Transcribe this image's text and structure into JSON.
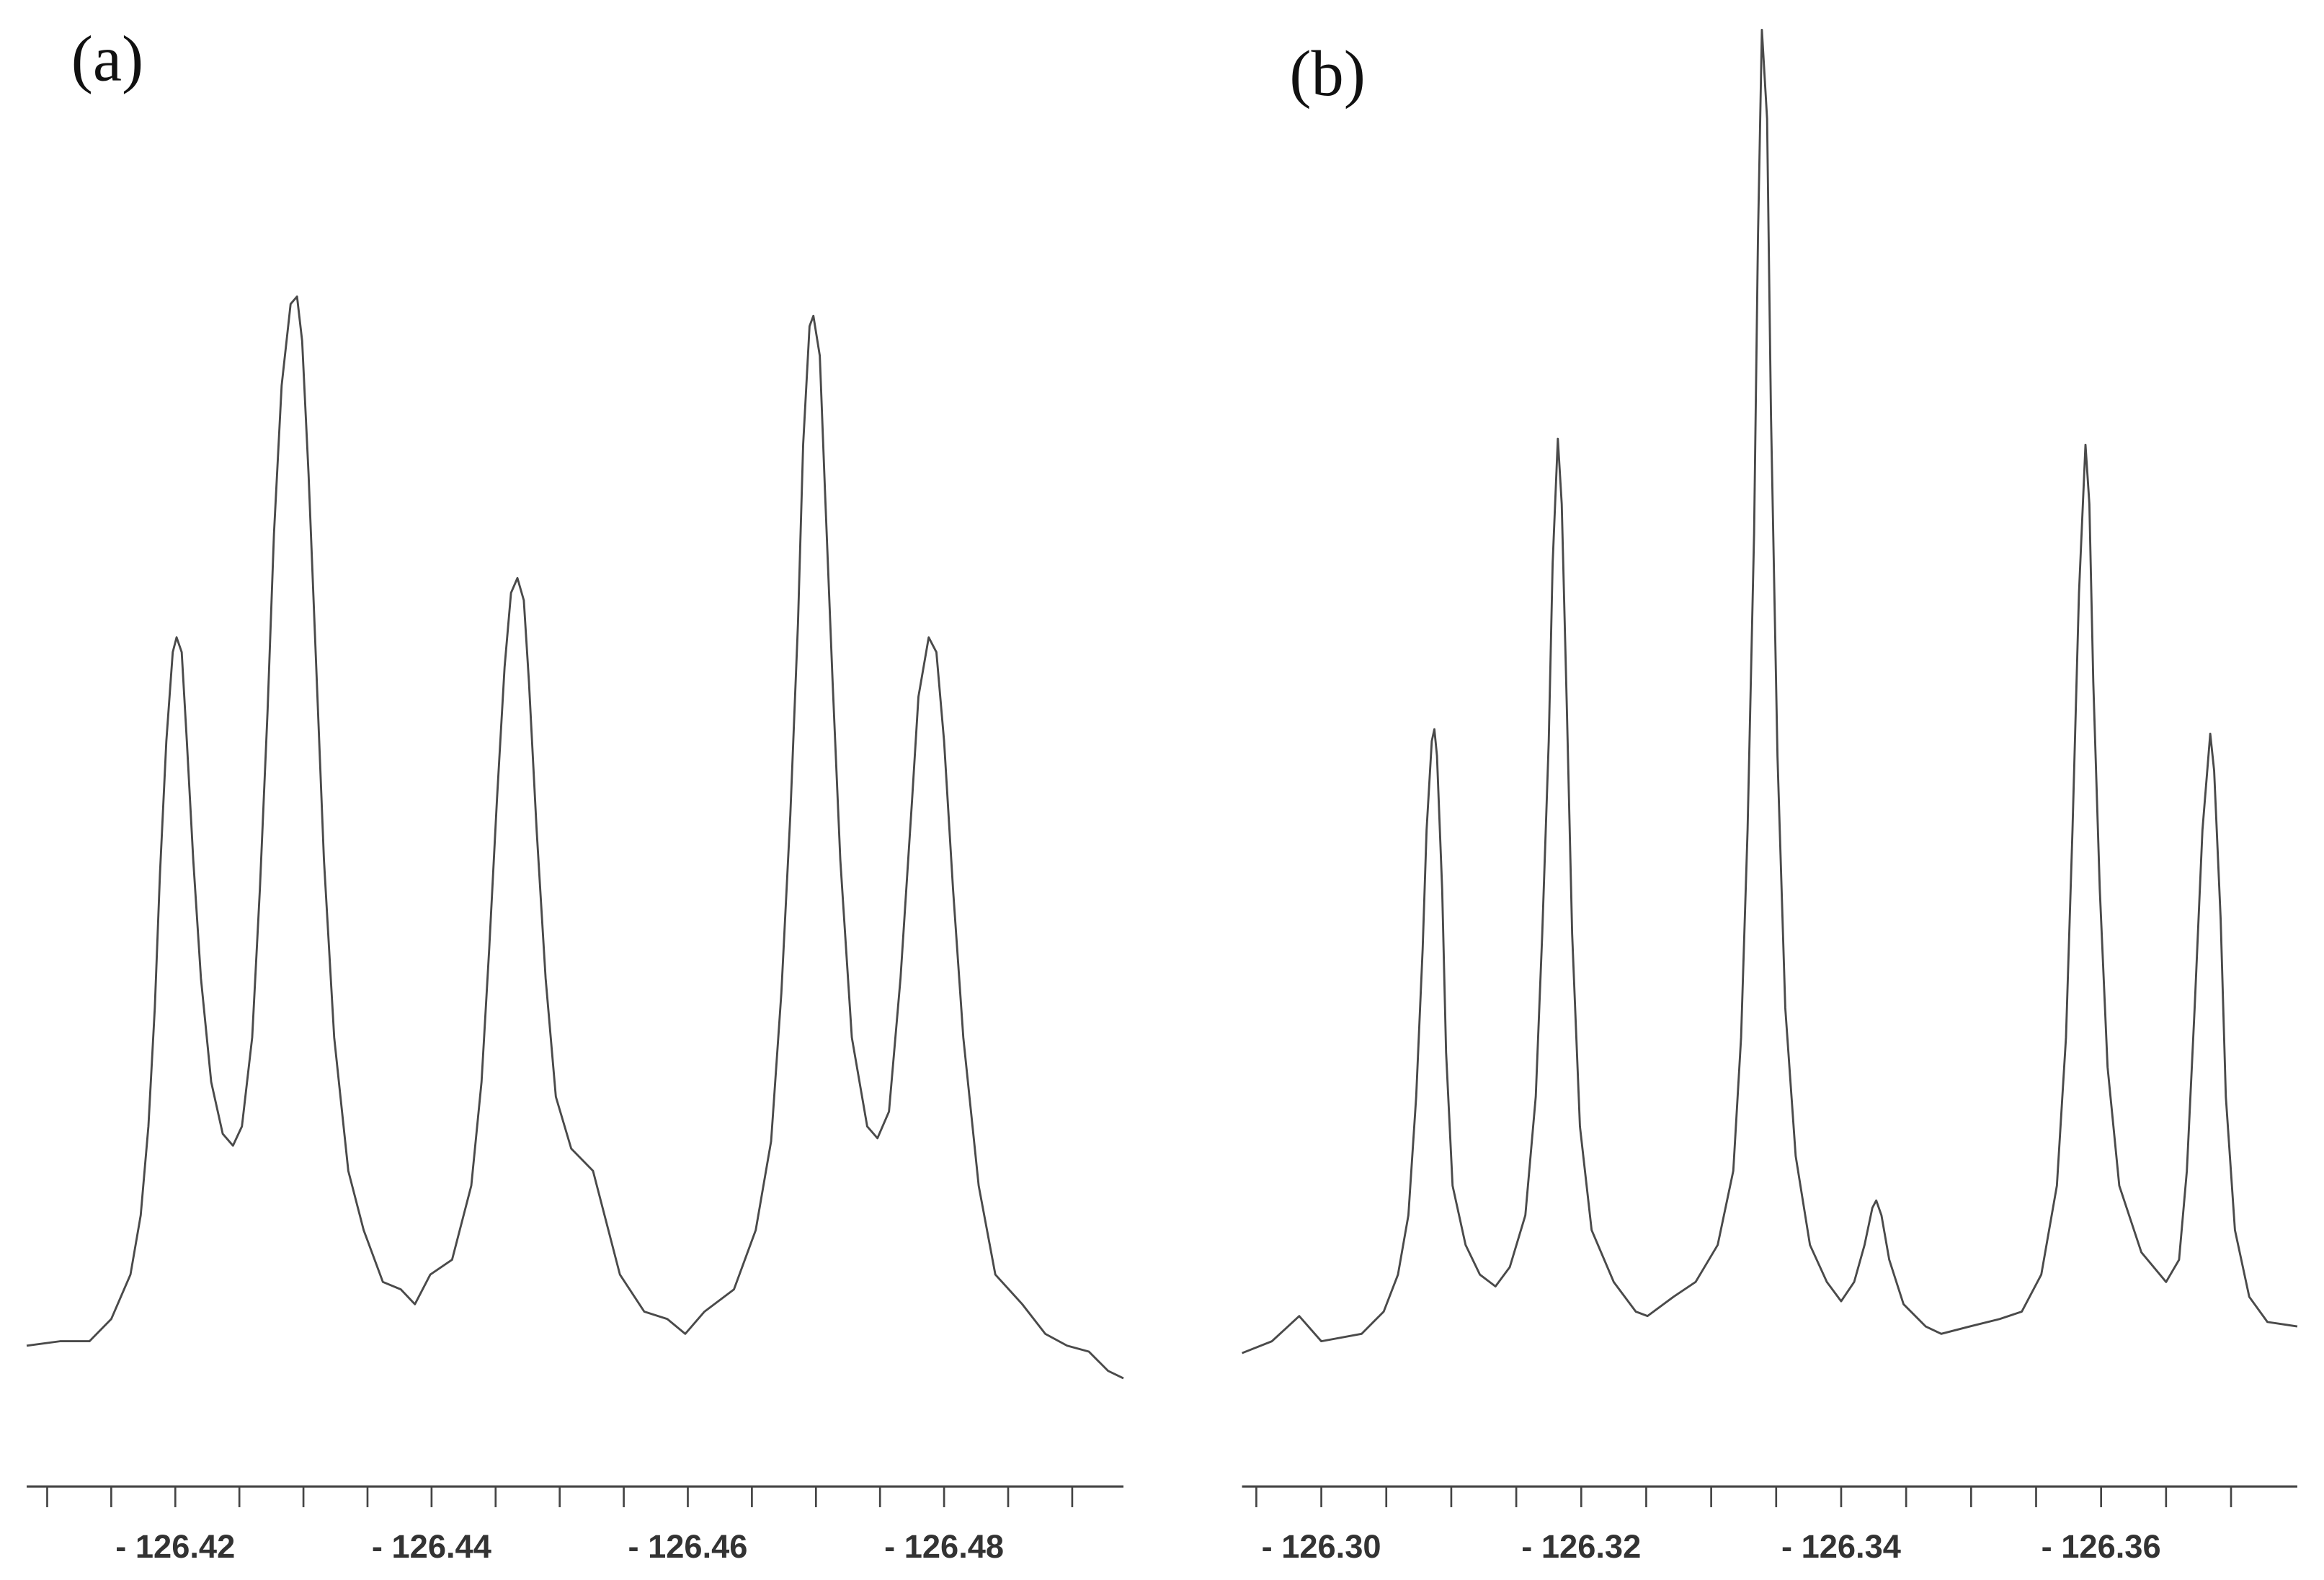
{
  "chart_data": [
    {
      "type": "line",
      "title": "(a)",
      "color": "#4a4a4a",
      "xlim": [
        -126.4084,
        -126.494
      ],
      "ylim": [
        0,
        95
      ],
      "xticks": [
        {
          "value": -126.42,
          "label": "- 126.42"
        },
        {
          "value": -126.44,
          "label": "- 126.44"
        },
        {
          "value": -126.46,
          "label": "- 126.46"
        },
        {
          "value": -126.48,
          "label": "- 126.48"
        }
      ],
      "xminorticks": [
        -126.41,
        -126.415,
        -126.425,
        -126.43,
        -126.435,
        -126.445,
        -126.45,
        -126.455,
        -126.465,
        -126.47,
        -126.475,
        -126.485,
        -126.49
      ],
      "x": [
        -126.4084,
        -126.411,
        -126.4133,
        -126.415,
        -126.4165,
        -126.4173,
        -126.4179,
        -126.4184,
        -126.4188,
        -126.4193,
        -126.4198,
        -126.4201,
        -126.4205,
        -126.4209,
        -126.4214,
        -126.422,
        -126.4228,
        -126.4237,
        -126.4245,
        -126.4252,
        -126.426,
        -126.4266,
        -126.4272,
        -126.4277,
        -126.4283,
        -126.429,
        -126.4295,
        -126.4299,
        -126.4304,
        -126.431,
        -126.4316,
        -126.4324,
        -126.4335,
        -126.4347,
        -126.4362,
        -126.4376,
        -126.4387,
        -126.4399,
        -126.4416,
        -126.4431,
        -126.4439,
        -126.4445,
        -126.4451,
        -126.4457,
        -126.4462,
        -126.4467,
        -126.4472,
        -126.4476,
        -126.4482,
        -126.4489,
        -126.4497,
        -126.4509,
        -126.4526,
        -126.4535,
        -126.4547,
        -126.4566,
        -126.4584,
        -126.4598,
        -126.4613,
        -126.4636,
        -126.4653,
        -126.4665,
        -126.4673,
        -126.468,
        -126.4686,
        -126.469,
        -126.4695,
        -126.4698,
        -126.4703,
        -126.4707,
        -126.4713,
        -126.4719,
        -126.4728,
        -126.474,
        -126.4748,
        -126.4757,
        -126.4766,
        -126.4775,
        -126.478,
        -126.4788,
        -126.4794,
        -126.48,
        -126.4807,
        -126.4815,
        -126.4827,
        -126.484,
        -126.4861,
        -126.4879,
        -126.4896,
        -126.4913,
        -126.4928,
        -126.494
      ],
      "values": [
        5.2,
        5.5,
        5.5,
        7.0,
        10.0,
        14.0,
        20.0,
        28.0,
        37.0,
        46.0,
        52.0,
        53.0,
        52.0,
        46.0,
        38.0,
        30.0,
        23.0,
        19.5,
        18.7,
        20.0,
        26.0,
        36.0,
        48.0,
        60.0,
        70.0,
        75.5,
        76.0,
        73.0,
        64.0,
        51.0,
        38.0,
        26.0,
        17.0,
        13.0,
        9.5,
        9.0,
        8.0,
        10.0,
        11.0,
        16.0,
        23.0,
        32.0,
        42.0,
        51.0,
        56.0,
        57.0,
        55.5,
        50.0,
        40.0,
        30.0,
        22.0,
        18.5,
        17.0,
        14.0,
        10.0,
        7.5,
        7.0,
        6.0,
        7.5,
        9.0,
        13.0,
        19.0,
        29.0,
        41.0,
        54.0,
        66.0,
        74.0,
        74.7,
        72.0,
        63.0,
        50.0,
        38.0,
        26.0,
        20.0,
        19.2,
        21.0,
        30.0,
        42.0,
        49.0,
        53.0,
        52.0,
        46.0,
        36.0,
        26.0,
        16.0,
        10.0,
        8.0,
        6.0,
        5.2,
        4.8,
        3.5,
        3.0
      ]
    },
    {
      "type": "line",
      "title": "(b)",
      "color": "#4a4a4a",
      "xlim": [
        -126.2939,
        -126.3751
      ],
      "ylim": [
        0,
        95
      ],
      "xticks": [
        {
          "value": -126.3,
          "label": "- 126.30"
        },
        {
          "value": -126.32,
          "label": "- 126.32"
        },
        {
          "value": -126.34,
          "label": "- 126.34"
        },
        {
          "value": -126.36,
          "label": "- 126.36"
        }
      ],
      "xminorticks": [
        -126.295,
        -126.305,
        -126.31,
        -126.315,
        -126.325,
        -126.33,
        -126.335,
        -126.345,
        -126.35,
        -126.355,
        -126.365,
        -126.37
      ],
      "x": [
        -126.2939,
        -126.2962,
        -126.2983,
        -126.3,
        -126.3031,
        -126.3048,
        -126.3059,
        -126.3067,
        -126.3073,
        -126.3078,
        -126.3081,
        -126.3085,
        -126.3087,
        -126.3089,
        -126.3093,
        -126.3096,
        -126.3101,
        -126.3111,
        -126.3122,
        -126.3134,
        -126.3145,
        -126.3157,
        -126.3165,
        -126.317,
        -126.3175,
        -126.3178,
        -126.3182,
        -126.3185,
        -126.3189,
        -126.3193,
        -126.3199,
        -126.3208,
        -126.3225,
        -126.3242,
        -126.3251,
        -126.3271,
        -126.3288,
        -126.3305,
        -126.3317,
        -126.3323,
        -126.3328,
        -126.3333,
        -126.3336,
        -126.3339,
        -126.3343,
        -126.3346,
        -126.3351,
        -126.3357,
        -126.3365,
        -126.3376,
        -126.3389,
        -126.34,
        -126.341,
        -126.3418,
        -126.3424,
        -126.3427,
        -126.3431,
        -126.3437,
        -126.3448,
        -126.3465,
        -126.3477,
        -126.3499,
        -126.3522,
        -126.3539,
        -126.3554,
        -126.3566,
        -126.3573,
        -126.3578,
        -126.3583,
        -126.3588,
        -126.3591,
        -126.3594,
        -126.3599,
        -126.3605,
        -126.3614,
        -126.3631,
        -126.365,
        -126.366,
        -126.3666,
        -126.3672,
        -126.3678,
        -126.3684,
        -126.3687,
        -126.3692,
        -126.3696,
        -126.3703,
        -126.3714,
        -126.3728,
        -126.3751
      ],
      "values": [
        4.7,
        5.5,
        7.2,
        5.5,
        6.0,
        7.5,
        10,
        14,
        22,
        32,
        40,
        46,
        46.8,
        45,
        36,
        25,
        16,
        12,
        10,
        9.2,
        10.5,
        14,
        22,
        33,
        46,
        58,
        66.4,
        62,
        48,
        33,
        20,
        13,
        9.5,
        7.5,
        7.2,
        8.5,
        9.5,
        12,
        17,
        26,
        40,
        60,
        80,
        94,
        88,
        68,
        45,
        28,
        18,
        12,
        9.5,
        8.2,
        9.5,
        12,
        14.5,
        15,
        14,
        11,
        8,
        6.5,
        6,
        6.5,
        7,
        7.5,
        10,
        16,
        26,
        40,
        56,
        66,
        62,
        50,
        36,
        24,
        16,
        11.5,
        9.5,
        11,
        17,
        28,
        40,
        46.5,
        44,
        34,
        22,
        13,
        8.5,
        6.8,
        6.5
      ]
    }
  ]
}
